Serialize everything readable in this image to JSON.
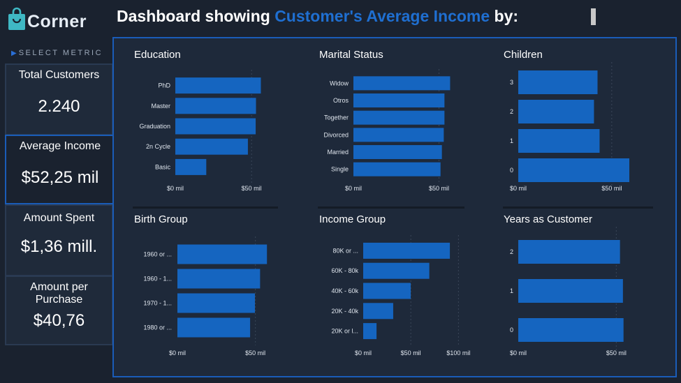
{
  "brand": {
    "logo_text": "Corner",
    "accent": "#1f6fd1"
  },
  "header": {
    "prefix": "Dashboard showing ",
    "highlight": "Customer's Average Income",
    "suffix": " by:"
  },
  "sidebar": {
    "select_label": "SELECT METRIC",
    "cards": [
      {
        "title": "Total Customers",
        "value": "2.240"
      },
      {
        "title": "Average Income",
        "value": "$52,25 mil"
      },
      {
        "title": "Amount Spent",
        "value": "$1,36 mill."
      },
      {
        "title": "Amount per Purchase",
        "value": "$40,76"
      }
    ]
  },
  "colors": {
    "bar": "#1565c0",
    "grid": "#3a4658",
    "text": "#e0e6ee"
  },
  "chart_data": [
    {
      "type": "bar",
      "orientation": "horizontal",
      "title": "Education",
      "categories": [
        "PhD",
        "Master",
        "Graduation",
        "2n Cycle",
        "Basic"
      ],
      "values": [
        56.1,
        52.9,
        52.7,
        47.6,
        20.3
      ],
      "xlim": [
        0,
        60
      ],
      "ticks": [
        0,
        50
      ],
      "tick_labels": [
        "$0 mil",
        "$50 mil"
      ]
    },
    {
      "type": "bar",
      "orientation": "horizontal",
      "title": "Marital Status",
      "categories": [
        "Widow",
        "Otros",
        "Together",
        "Divorced",
        "Married",
        "Single"
      ],
      "values": [
        56.5,
        53.2,
        53.2,
        52.8,
        51.7,
        50.9
      ],
      "xlim": [
        0,
        60
      ],
      "ticks": [
        0,
        50
      ],
      "tick_labels": [
        "$0 mil",
        "$50 mil"
      ]
    },
    {
      "type": "bar",
      "orientation": "horizontal",
      "title": "Children",
      "categories": [
        "3",
        "2",
        "1",
        "0"
      ],
      "values": [
        42.4,
        40.5,
        43.5,
        59.4
      ],
      "xlim": [
        0,
        65
      ],
      "ticks": [
        0,
        50
      ],
      "tick_labels": [
        "$0 mil",
        "$50 mil"
      ]
    },
    {
      "type": "bar",
      "orientation": "horizontal",
      "title": "Birth Group",
      "categories": [
        "1960 or ...",
        "1960 - 1...",
        "1970 - 1...",
        "1980 or ..."
      ],
      "values": [
        57.4,
        53.0,
        49.7,
        46.6
      ],
      "xlim": [
        0,
        60
      ],
      "ticks": [
        0,
        50
      ],
      "tick_labels": [
        "$0 mil",
        "$50 mil"
      ]
    },
    {
      "type": "bar",
      "orientation": "horizontal",
      "title": "Income Group",
      "categories": [
        "80K or ...",
        "60K - 80k",
        "40K - 60k",
        "20K - 40k",
        "20K or l..."
      ],
      "values": [
        91.0,
        69.4,
        49.9,
        31.5,
        14.0
      ],
      "xlim": [
        0,
        110
      ],
      "ticks": [
        0,
        50,
        100
      ],
      "tick_labels": [
        "$0 mil",
        "$50 mil",
        "$100 mil"
      ]
    },
    {
      "type": "bar",
      "orientation": "horizontal",
      "title": "Years as Customer",
      "categories": [
        "2",
        "1",
        "0"
      ],
      "values": [
        51.9,
        53.4,
        53.7
      ],
      "xlim": [
        0,
        62
      ],
      "ticks": [
        0,
        50
      ],
      "tick_labels": [
        "$0 mil",
        "$50 mil"
      ]
    }
  ]
}
